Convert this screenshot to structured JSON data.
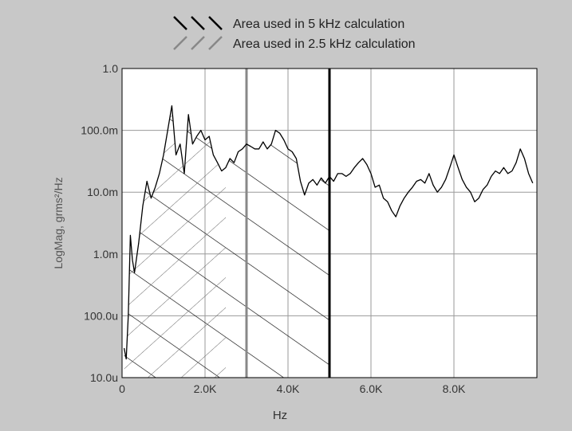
{
  "chart_data": {
    "type": "line",
    "title": "",
    "xlabel": "Hz",
    "ylabel": "LogMag, grms²/Hz",
    "x_scale": "linear",
    "y_scale": "log",
    "xlim": [
      0,
      10000
    ],
    "ylim": [
      1e-05,
      1.0
    ],
    "grid": true,
    "legend_placement": "top-center",
    "x_ticks": [
      {
        "value": 0,
        "label": "0"
      },
      {
        "value": 2000,
        "label": "2.0K"
      },
      {
        "value": 4000,
        "label": "4.0K"
      },
      {
        "value": 6000,
        "label": "6.0K"
      },
      {
        "value": 8000,
        "label": "8.0K"
      }
    ],
    "y_ticks": [
      {
        "value": 1.0,
        "label": "1.0"
      },
      {
        "value": 0.1,
        "label": "100.0m"
      },
      {
        "value": 0.01,
        "label": "10.0m"
      },
      {
        "value": 0.001,
        "label": "1.0m"
      },
      {
        "value": 0.0001,
        "label": "100.0u"
      },
      {
        "value": 1e-05,
        "label": "10.0u"
      }
    ],
    "legend": [
      {
        "label": "Area used in 5 kHz calculation",
        "hatch": "backslash",
        "color": "#000000"
      },
      {
        "label": "Area used in 2.5 kHz calculation",
        "hatch": "slash",
        "color": "#888888"
      }
    ],
    "vertical_markers": [
      {
        "x": 3000,
        "color": "#888888"
      },
      {
        "x": 5000,
        "color": "#000000"
      }
    ],
    "series": [
      {
        "color": "#000000",
        "x": [
          50,
          100,
          150,
          200,
          250,
          300,
          400,
          500,
          600,
          700,
          800,
          900,
          1000,
          1100,
          1200,
          1300,
          1400,
          1500,
          1600,
          1700,
          1800,
          1900,
          2000,
          2100,
          2200,
          2300,
          2400,
          2500,
          2600,
          2700,
          2800,
          2900,
          3000,
          3100,
          3200,
          3300,
          3400,
          3500,
          3600,
          3700,
          3800,
          3900,
          4000,
          4100,
          4200,
          4300,
          4400,
          4500,
          4600,
          4700,
          4800,
          4900,
          5000,
          5100,
          5200,
          5300,
          5400,
          5500,
          5600,
          5700,
          5800,
          5900,
          6000,
          6100,
          6200,
          6300,
          6400,
          6500,
          6600,
          6700,
          6800,
          6900,
          7000,
          7100,
          7200,
          7300,
          7400,
          7500,
          7600,
          7700,
          7800,
          7900,
          8000,
          8100,
          8200,
          8300,
          8400,
          8500,
          8600,
          8700,
          8800,
          8900,
          9000,
          9100,
          9200,
          9300,
          9400,
          9500,
          9600,
          9700,
          9800,
          9900
        ],
        "y": [
          3e-05,
          2e-05,
          0.0001,
          0.002,
          0.0008,
          0.0005,
          0.0015,
          0.006,
          0.015,
          0.008,
          0.012,
          0.02,
          0.04,
          0.1,
          0.25,
          0.04,
          0.06,
          0.02,
          0.18,
          0.06,
          0.08,
          0.1,
          0.07,
          0.08,
          0.04,
          0.03,
          0.022,
          0.025,
          0.035,
          0.03,
          0.045,
          0.05,
          0.06,
          0.055,
          0.05,
          0.05,
          0.065,
          0.05,
          0.06,
          0.1,
          0.09,
          0.07,
          0.05,
          0.045,
          0.035,
          0.015,
          0.009,
          0.014,
          0.016,
          0.013,
          0.017,
          0.014,
          0.018,
          0.015,
          0.02,
          0.02,
          0.018,
          0.02,
          0.025,
          0.03,
          0.035,
          0.028,
          0.02,
          0.012,
          0.013,
          0.008,
          0.007,
          0.005,
          0.004,
          0.006,
          0.008,
          0.01,
          0.012,
          0.015,
          0.016,
          0.014,
          0.02,
          0.013,
          0.01,
          0.012,
          0.016,
          0.025,
          0.04,
          0.025,
          0.016,
          0.012,
          0.01,
          0.007,
          0.008,
          0.011,
          0.013,
          0.018,
          0.022,
          0.02,
          0.025,
          0.02,
          0.022,
          0.03,
          0.05,
          0.035,
          0.02,
          0.014
        ]
      }
    ]
  }
}
